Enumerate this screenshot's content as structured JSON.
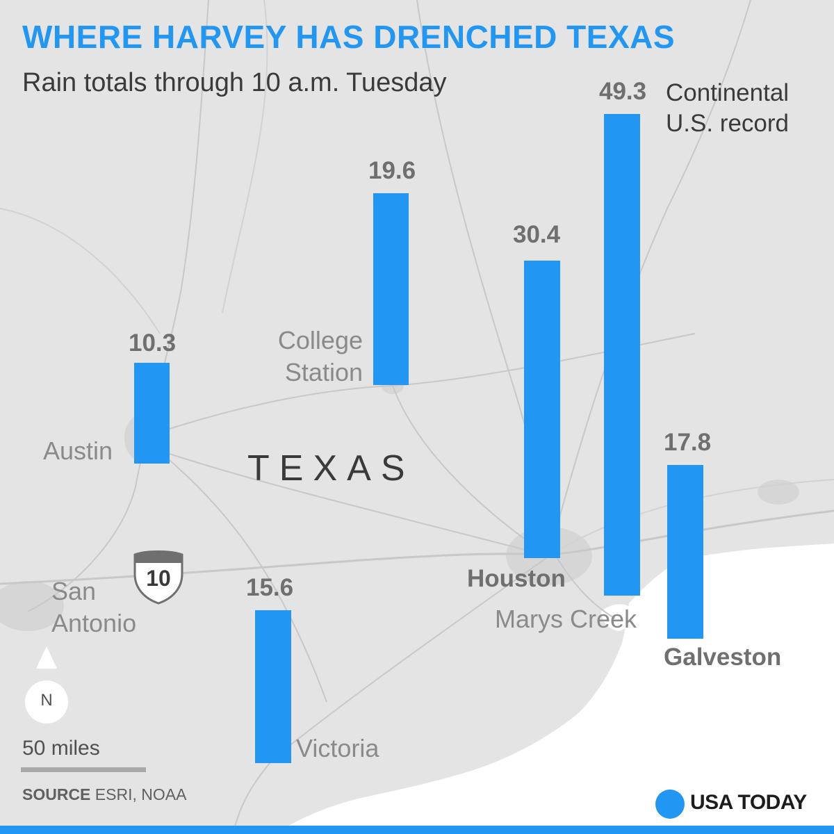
{
  "title": "WHERE HARVEY HAS DRENCHED TEXAS",
  "subtitle": "Rain totals through 10 a.m. Tuesday",
  "state_label": "TEXAS",
  "highway_shield": "10",
  "compass": "N",
  "scale": {
    "label": "50 miles"
  },
  "source": {
    "label": "SOURCE",
    "text": "ESRI, NOAA"
  },
  "brand": {
    "name": "USA TODAY"
  },
  "record_note": {
    "line1": "Continental",
    "line2": "U.S. record"
  },
  "colors": {
    "accent": "#2196f3",
    "land": "#e4e4e4",
    "water": "#ffffff",
    "text_dark": "#3a3a3a",
    "text_gray": "#8a8a8a"
  },
  "locations": [
    {
      "name": "Austin",
      "value": "10.3"
    },
    {
      "name_line1": "College",
      "name_line2": "Station",
      "value": "19.6"
    },
    {
      "name": "Houston",
      "value": "30.4"
    },
    {
      "name": "Marys Creek",
      "value": "49.3"
    },
    {
      "name": "Galveston",
      "value": "17.8"
    },
    {
      "name": "Victoria",
      "value": "15.6"
    },
    {
      "name_line1": "San",
      "name_line2": "Antonio"
    }
  ],
  "chart_data": {
    "type": "bar",
    "categories": [
      "Austin",
      "College Station",
      "Houston",
      "Marys Creek",
      "Galveston",
      "Victoria"
    ],
    "values": [
      10.3,
      19.6,
      30.4,
      49.3,
      17.8,
      15.6
    ],
    "title": "WHERE HARVEY HAS DRENCHED TEXAS",
    "subtitle": "Rain totals through 10 a.m. Tuesday",
    "annotations": [
      "Continental U.S. record"
    ]
  }
}
